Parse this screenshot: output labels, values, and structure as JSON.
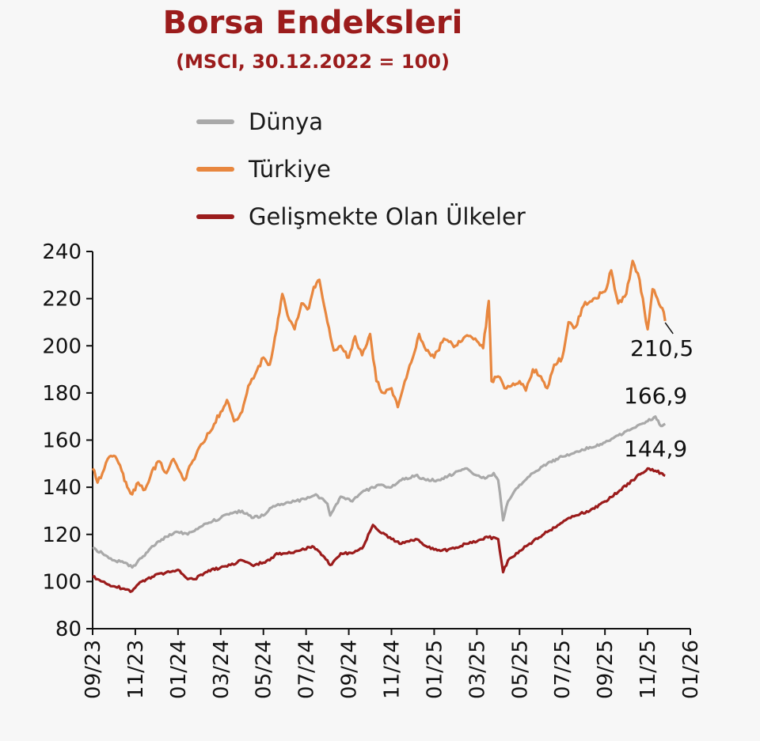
{
  "chart_data": {
    "type": "line",
    "title": "Borsa Endeksleri",
    "subtitle": "(MSCI, 30.12.2022 = 100)",
    "ylim": [
      80,
      240
    ],
    "yticks": [
      80,
      100,
      120,
      140,
      160,
      180,
      200,
      220,
      240
    ],
    "xlim": [
      "2023-09",
      "2026-01"
    ],
    "xtick_labels": [
      "09/23",
      "11/23",
      "01/24",
      "03/24",
      "05/24",
      "07/24",
      "09/24",
      "11/24",
      "01/25",
      "03/25",
      "05/25",
      "07/25",
      "09/25",
      "11/25",
      "01/26"
    ],
    "grid": false,
    "legend_position": "top",
    "series": [
      {
        "name": "Dünya",
        "color": "#a9a9a9",
        "end_label": "166,9",
        "points": [
          [
            "2023-09-01",
            114
          ],
          [
            "2023-09-15",
            112
          ],
          [
            "2023-10-01",
            109
          ],
          [
            "2023-10-15",
            108
          ],
          [
            "2023-10-27",
            106
          ],
          [
            "2023-11-10",
            110
          ],
          [
            "2023-11-25",
            115
          ],
          [
            "2023-12-15",
            119
          ],
          [
            "2024-01-01",
            121
          ],
          [
            "2024-01-15",
            120
          ],
          [
            "2024-02-01",
            123
          ],
          [
            "2024-02-15",
            125
          ],
          [
            "2024-03-01",
            127
          ],
          [
            "2024-03-15",
            129
          ],
          [
            "2024-04-01",
            130
          ],
          [
            "2024-04-15",
            127
          ],
          [
            "2024-05-01",
            128
          ],
          [
            "2024-05-15",
            132
          ],
          [
            "2024-06-01",
            133
          ],
          [
            "2024-06-15",
            134
          ],
          [
            "2024-07-01",
            135
          ],
          [
            "2024-07-15",
            137
          ],
          [
            "2024-08-01",
            133
          ],
          [
            "2024-08-05",
            128
          ],
          [
            "2024-08-20",
            136
          ],
          [
            "2024-09-06",
            134
          ],
          [
            "2024-09-20",
            138
          ],
          [
            "2024-10-15",
            141
          ],
          [
            "2024-11-01",
            140
          ],
          [
            "2024-11-15",
            143
          ],
          [
            "2024-12-05",
            145
          ],
          [
            "2024-12-20",
            143
          ],
          [
            "2025-01-10",
            143
          ],
          [
            "2025-01-30",
            146
          ],
          [
            "2025-02-15",
            148
          ],
          [
            "2025-03-01",
            145
          ],
          [
            "2025-03-15",
            144
          ],
          [
            "2025-03-25",
            146
          ],
          [
            "2025-04-01",
            143
          ],
          [
            "2025-04-08",
            126
          ],
          [
            "2025-04-15",
            134
          ],
          [
            "2025-05-01",
            141
          ],
          [
            "2025-05-20",
            146
          ],
          [
            "2025-06-10",
            150
          ],
          [
            "2025-07-01",
            153
          ],
          [
            "2025-07-20",
            155
          ],
          [
            "2025-08-10",
            157
          ],
          [
            "2025-09-01",
            159
          ],
          [
            "2025-09-20",
            162
          ],
          [
            "2025-10-10",
            165
          ],
          [
            "2025-11-01",
            168
          ],
          [
            "2025-11-12",
            170
          ],
          [
            "2025-11-20",
            166
          ],
          [
            "2025-11-26",
            166.9
          ]
        ]
      },
      {
        "name": "Türkiye",
        "color": "#e8873f",
        "end_label": "210,5",
        "points": [
          [
            "2023-09-01",
            148
          ],
          [
            "2023-09-08",
            142
          ],
          [
            "2023-09-15",
            146
          ],
          [
            "2023-09-25",
            153
          ],
          [
            "2023-10-05",
            152
          ],
          [
            "2023-10-12",
            147
          ],
          [
            "2023-10-20",
            140
          ],
          [
            "2023-10-27",
            137
          ],
          [
            "2023-11-05",
            142
          ],
          [
            "2023-11-15",
            139
          ],
          [
            "2023-11-25",
            147
          ],
          [
            "2023-12-05",
            151
          ],
          [
            "2023-12-15",
            146
          ],
          [
            "2023-12-25",
            152
          ],
          [
            "2024-01-01",
            148
          ],
          [
            "2024-01-10",
            143
          ],
          [
            "2024-01-20",
            150
          ],
          [
            "2024-02-01",
            157
          ],
          [
            "2024-02-15",
            163
          ],
          [
            "2024-03-01",
            172
          ],
          [
            "2024-03-10",
            177
          ],
          [
            "2024-03-20",
            168
          ],
          [
            "2024-04-01",
            172
          ],
          [
            "2024-04-10",
            183
          ],
          [
            "2024-04-20",
            188
          ],
          [
            "2024-05-01",
            195
          ],
          [
            "2024-05-10",
            192
          ],
          [
            "2024-05-20",
            207
          ],
          [
            "2024-05-28",
            222
          ],
          [
            "2024-06-05",
            213
          ],
          [
            "2024-06-15",
            207
          ],
          [
            "2024-06-25",
            218
          ],
          [
            "2024-07-05",
            216
          ],
          [
            "2024-07-12",
            225
          ],
          [
            "2024-07-20",
            228
          ],
          [
            "2024-08-01",
            210
          ],
          [
            "2024-08-10",
            198
          ],
          [
            "2024-08-20",
            200
          ],
          [
            "2024-09-01",
            195
          ],
          [
            "2024-09-10",
            204
          ],
          [
            "2024-09-20",
            196
          ],
          [
            "2024-10-01",
            205
          ],
          [
            "2024-10-10",
            185
          ],
          [
            "2024-10-20",
            180
          ],
          [
            "2024-11-01",
            182
          ],
          [
            "2024-11-10",
            174
          ],
          [
            "2024-11-20",
            185
          ],
          [
            "2024-12-01",
            195
          ],
          [
            "2024-12-10",
            205
          ],
          [
            "2024-12-20",
            198
          ],
          [
            "2025-01-01",
            195
          ],
          [
            "2025-01-15",
            203
          ],
          [
            "2025-02-01",
            200
          ],
          [
            "2025-02-15",
            204
          ],
          [
            "2025-03-01",
            202
          ],
          [
            "2025-03-10",
            199
          ],
          [
            "2025-03-18",
            219
          ],
          [
            "2025-03-22",
            185
          ],
          [
            "2025-04-01",
            187
          ],
          [
            "2025-04-10",
            182
          ],
          [
            "2025-04-20",
            183
          ],
          [
            "2025-05-01",
            185
          ],
          [
            "2025-05-10",
            181
          ],
          [
            "2025-05-20",
            190
          ],
          [
            "2025-06-01",
            187
          ],
          [
            "2025-06-10",
            182
          ],
          [
            "2025-06-20",
            192
          ],
          [
            "2025-07-01",
            195
          ],
          [
            "2025-07-10",
            210
          ],
          [
            "2025-07-20",
            208
          ],
          [
            "2025-08-01",
            217
          ],
          [
            "2025-08-15",
            220
          ],
          [
            "2025-09-01",
            223
          ],
          [
            "2025-09-10",
            232
          ],
          [
            "2025-09-20",
            218
          ],
          [
            "2025-10-01",
            222
          ],
          [
            "2025-10-10",
            236
          ],
          [
            "2025-10-20",
            228
          ],
          [
            "2025-11-01",
            207
          ],
          [
            "2025-11-08",
            224
          ],
          [
            "2025-11-15",
            220
          ],
          [
            "2025-11-22",
            216
          ],
          [
            "2025-11-26",
            210.5
          ]
        ]
      },
      {
        "name": "Gelişmekte Olan Ülkeler",
        "color": "#9b1c1c",
        "end_label": "144,9",
        "points": [
          [
            "2023-09-01",
            102
          ],
          [
            "2023-09-15",
            100
          ],
          [
            "2023-10-01",
            98
          ],
          [
            "2023-10-15",
            97
          ],
          [
            "2023-10-27",
            96
          ],
          [
            "2023-11-10",
            100
          ],
          [
            "2023-11-25",
            102
          ],
          [
            "2023-12-15",
            104
          ],
          [
            "2024-01-01",
            105
          ],
          [
            "2024-01-15",
            101
          ],
          [
            "2024-01-25",
            101
          ],
          [
            "2024-02-10",
            104
          ],
          [
            "2024-03-01",
            106
          ],
          [
            "2024-03-15",
            107
          ],
          [
            "2024-04-01",
            109
          ],
          [
            "2024-04-15",
            107
          ],
          [
            "2024-05-01",
            108
          ],
          [
            "2024-05-10",
            109
          ],
          [
            "2024-05-20",
            112
          ],
          [
            "2024-06-05",
            112
          ],
          [
            "2024-06-20",
            113
          ],
          [
            "2024-07-10",
            115
          ],
          [
            "2024-07-25",
            111
          ],
          [
            "2024-08-05",
            107
          ],
          [
            "2024-08-20",
            112
          ],
          [
            "2024-09-06",
            112
          ],
          [
            "2024-09-20",
            114
          ],
          [
            "2024-10-05",
            124
          ],
          [
            "2024-10-15",
            121
          ],
          [
            "2024-11-01",
            118
          ],
          [
            "2024-11-15",
            116
          ],
          [
            "2024-12-05",
            118
          ],
          [
            "2024-12-20",
            115
          ],
          [
            "2025-01-10",
            113
          ],
          [
            "2025-01-30",
            114
          ],
          [
            "2025-02-15",
            116
          ],
          [
            "2025-03-01",
            117
          ],
          [
            "2025-03-15",
            119
          ],
          [
            "2025-04-01",
            118
          ],
          [
            "2025-04-08",
            104
          ],
          [
            "2025-04-15",
            109
          ],
          [
            "2025-05-01",
            113
          ],
          [
            "2025-05-20",
            117
          ],
          [
            "2025-06-10",
            121
          ],
          [
            "2025-07-01",
            125
          ],
          [
            "2025-07-20",
            128
          ],
          [
            "2025-08-10",
            130
          ],
          [
            "2025-09-01",
            134
          ],
          [
            "2025-09-20",
            138
          ],
          [
            "2025-10-10",
            143
          ],
          [
            "2025-11-01",
            148
          ],
          [
            "2025-11-12",
            147
          ],
          [
            "2025-11-20",
            146
          ],
          [
            "2025-11-26",
            144.9
          ]
        ]
      }
    ]
  }
}
